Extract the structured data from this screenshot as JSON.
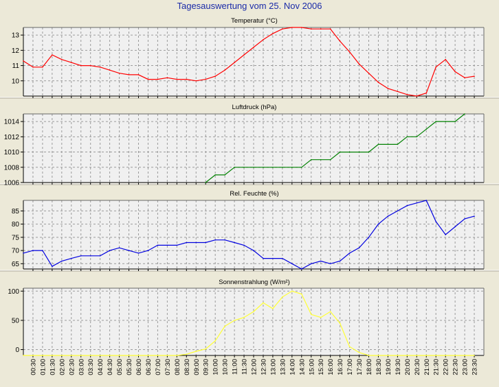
{
  "window": {
    "title": "Tagesauswertung vom 25. Nov 2006"
  },
  "colors": {
    "background": "#ece9d8",
    "plot_background": "#f0f0f0",
    "title": "#1a2aa8",
    "grid": "#9a9a9a",
    "temperature": "#ff0000",
    "pressure": "#008000",
    "humidity": "#0000e0",
    "radiation": "#ffff33"
  },
  "x_tick_labels": [
    "00:30",
    "01:00",
    "01:30",
    "02:00",
    "02:30",
    "03:00",
    "03:30",
    "04:00",
    "04:30",
    "05:00",
    "05:30",
    "06:00",
    "06:30",
    "07:00",
    "07:30",
    "08:00",
    "08:30",
    "09:00",
    "09:30",
    "10:00",
    "10:30",
    "11:00",
    "11:30",
    "12:00",
    "12:30",
    "13:00",
    "13:30",
    "14:00",
    "14:30",
    "15:00",
    "15:30",
    "16:00",
    "16:30",
    "17:00",
    "17:30",
    "18:00",
    "18:30",
    "19:00",
    "19:30",
    "20:00",
    "20:30",
    "21:00",
    "21:30",
    "22:00",
    "22:30",
    "23:00",
    "23:30"
  ],
  "chart_data": [
    {
      "type": "line",
      "title": "Temperatur (°C)",
      "x": [
        "00:00",
        "00:30",
        "01:00",
        "01:30",
        "02:00",
        "02:30",
        "03:00",
        "03:30",
        "04:00",
        "04:30",
        "05:00",
        "05:30",
        "06:00",
        "06:30",
        "07:00",
        "07:30",
        "08:00",
        "08:30",
        "09:00",
        "09:30",
        "10:00",
        "10:30",
        "11:00",
        "11:30",
        "12:00",
        "12:30",
        "13:00",
        "13:30",
        "14:00",
        "14:30",
        "15:00",
        "15:30",
        "16:00",
        "16:30",
        "17:00",
        "17:30",
        "18:00",
        "18:30",
        "19:00",
        "19:30",
        "20:00",
        "20:30",
        "21:00",
        "21:30",
        "22:00",
        "22:30",
        "23:00",
        "23:30"
      ],
      "ylim": [
        9,
        13.5
      ],
      "yticks": [
        10,
        11,
        12,
        13
      ],
      "grid": true,
      "series": [
        {
          "color": "#ff0000",
          "values": [
            11.3,
            10.9,
            10.9,
            11.7,
            11.4,
            11.2,
            11.0,
            11.0,
            10.9,
            10.7,
            10.5,
            10.4,
            10.4,
            10.1,
            10.1,
            10.2,
            10.1,
            10.1,
            10.0,
            10.1,
            10.3,
            10.7,
            11.2,
            11.7,
            12.2,
            12.7,
            13.1,
            13.4,
            13.5,
            13.5,
            13.4,
            13.4,
            13.4,
            12.6,
            11.9,
            11.1,
            10.5,
            9.9,
            9.5,
            9.3,
            9.1,
            9.0,
            9.2,
            10.9,
            11.4,
            10.6,
            10.2,
            10.3
          ]
        }
      ]
    },
    {
      "type": "line",
      "title": "Luftdruck (hPa)",
      "x": [
        "09:30",
        "10:00",
        "10:30",
        "11:00",
        "11:30",
        "12:00",
        "12:30",
        "13:00",
        "13:30",
        "14:00",
        "14:30",
        "15:00",
        "15:30",
        "16:00",
        "16:30",
        "17:00",
        "17:30",
        "18:00",
        "18:30",
        "19:00",
        "19:30",
        "20:00",
        "20:30",
        "21:00",
        "21:30",
        "22:00",
        "22:30",
        "23:00"
      ],
      "ylim": [
        1006,
        1015
      ],
      "yticks": [
        1006,
        1008,
        1010,
        1012,
        1014
      ],
      "grid": true,
      "series": [
        {
          "color": "#008000",
          "values": [
            1006,
            1007,
            1007,
            1008,
            1008,
            1008,
            1008,
            1008,
            1008,
            1008,
            1008,
            1009,
            1009,
            1009,
            1010,
            1010,
            1010,
            1010,
            1011,
            1011,
            1011,
            1012,
            1012,
            1013,
            1014,
            1014,
            1014,
            1015
          ]
        }
      ]
    },
    {
      "type": "line",
      "title": "Rel. Feuchte (%)",
      "x": [
        "00:00",
        "00:30",
        "01:00",
        "01:30",
        "02:00",
        "02:30",
        "03:00",
        "03:30",
        "04:00",
        "04:30",
        "05:00",
        "05:30",
        "06:00",
        "06:30",
        "07:00",
        "07:30",
        "08:00",
        "08:30",
        "09:00",
        "09:30",
        "10:00",
        "10:30",
        "11:00",
        "11:30",
        "12:00",
        "12:30",
        "13:00",
        "13:30",
        "14:00",
        "14:30",
        "15:00",
        "15:30",
        "16:00",
        "16:30",
        "17:00",
        "17:30",
        "18:00",
        "18:30",
        "19:00",
        "19:30",
        "20:00",
        "20:30",
        "21:00",
        "21:30",
        "22:00",
        "22:30",
        "23:00",
        "23:30"
      ],
      "ylim": [
        63,
        89
      ],
      "yticks": [
        65,
        70,
        75,
        80,
        85
      ],
      "grid": true,
      "series": [
        {
          "color": "#0000e0",
          "values": [
            69,
            70,
            70,
            64,
            66,
            67,
            68,
            68,
            68,
            70,
            71,
            70,
            69,
            70,
            72,
            72,
            72,
            73,
            73,
            73,
            74,
            74,
            73,
            72,
            70,
            67,
            67,
            67,
            65,
            63,
            65,
            66,
            65,
            66,
            69,
            71,
            75,
            80,
            83,
            85,
            87,
            88,
            89,
            81,
            76,
            79,
            82,
            83
          ]
        }
      ]
    },
    {
      "type": "line",
      "title": "Sonnenstrahlung (W/m²)",
      "x": [
        "00:00",
        "00:30",
        "01:00",
        "01:30",
        "02:00",
        "02:30",
        "03:00",
        "03:30",
        "04:00",
        "04:30",
        "05:00",
        "05:30",
        "06:00",
        "06:30",
        "07:00",
        "07:30",
        "08:00",
        "08:30",
        "09:00",
        "09:30",
        "10:00",
        "10:30",
        "11:00",
        "11:30",
        "12:00",
        "12:30",
        "13:00",
        "13:30",
        "14:00",
        "14:30",
        "15:00",
        "15:30",
        "16:00",
        "16:30",
        "17:00",
        "17:30",
        "18:00",
        "18:30",
        "19:00",
        "19:30",
        "20:00",
        "20:30",
        "21:00",
        "21:30",
        "22:00",
        "22:30",
        "23:00",
        "23:30"
      ],
      "ylim": [
        -10,
        105
      ],
      "yticks": [
        0,
        50,
        100
      ],
      "grid": true,
      "series": [
        {
          "color": "#ffff33",
          "values": [
            -10,
            -10,
            -10,
            -10,
            -10,
            -10,
            -10,
            -10,
            -10,
            -10,
            -10,
            -10,
            -10,
            -10,
            -10,
            -10,
            -10,
            -8,
            -3,
            1,
            15,
            40,
            50,
            55,
            65,
            80,
            70,
            90,
            100,
            95,
            60,
            55,
            65,
            45,
            5,
            -5,
            -10,
            -10,
            -10,
            -10,
            -10,
            -10,
            -10,
            -10,
            -10,
            -10,
            -10,
            -10
          ]
        }
      ]
    }
  ]
}
